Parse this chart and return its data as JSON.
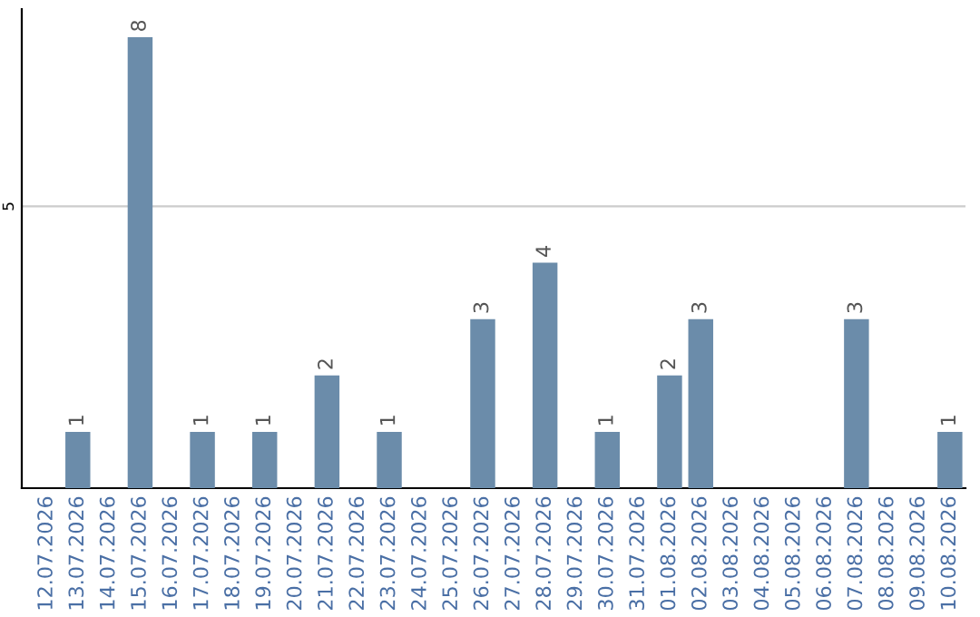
{
  "chart_data": {
    "type": "bar",
    "categories": [
      "12.07.2026",
      "13.07.2026",
      "14.07.2026",
      "15.07.2026",
      "16.07.2026",
      "17.07.2026",
      "18.07.2026",
      "19.07.2026",
      "20.07.2026",
      "21.07.2026",
      "22.07.2026",
      "23.07.2026",
      "24.07.2026",
      "25.07.2026",
      "26.07.2026",
      "27.07.2026",
      "28.07.2026",
      "29.07.2026",
      "30.07.2026",
      "31.07.2026",
      "01.08.2026",
      "02.08.2026",
      "03.08.2026",
      "04.08.2026",
      "05.08.2026",
      "06.08.2026",
      "07.08.2026",
      "08.08.2026",
      "09.08.2026",
      "10.08.2026"
    ],
    "values": [
      0,
      1,
      0,
      8,
      0,
      1,
      0,
      1,
      0,
      2,
      0,
      1,
      0,
      0,
      3,
      0,
      4,
      0,
      1,
      0,
      2,
      3,
      0,
      0,
      0,
      0,
      3,
      0,
      0,
      1
    ],
    "value_labels": [
      null,
      "1",
      null,
      "8",
      null,
      "1",
      null,
      "1",
      null,
      "2",
      null,
      "1",
      null,
      null,
      "3",
      null,
      "4",
      null,
      "1",
      null,
      "2",
      "3",
      null,
      null,
      null,
      null,
      "3",
      null,
      null,
      "1"
    ],
    "color": "#6b8caa",
    "ylim": [
      0,
      8.5
    ],
    "yticks": [
      5
    ],
    "grid": "y",
    "legend": false
  }
}
